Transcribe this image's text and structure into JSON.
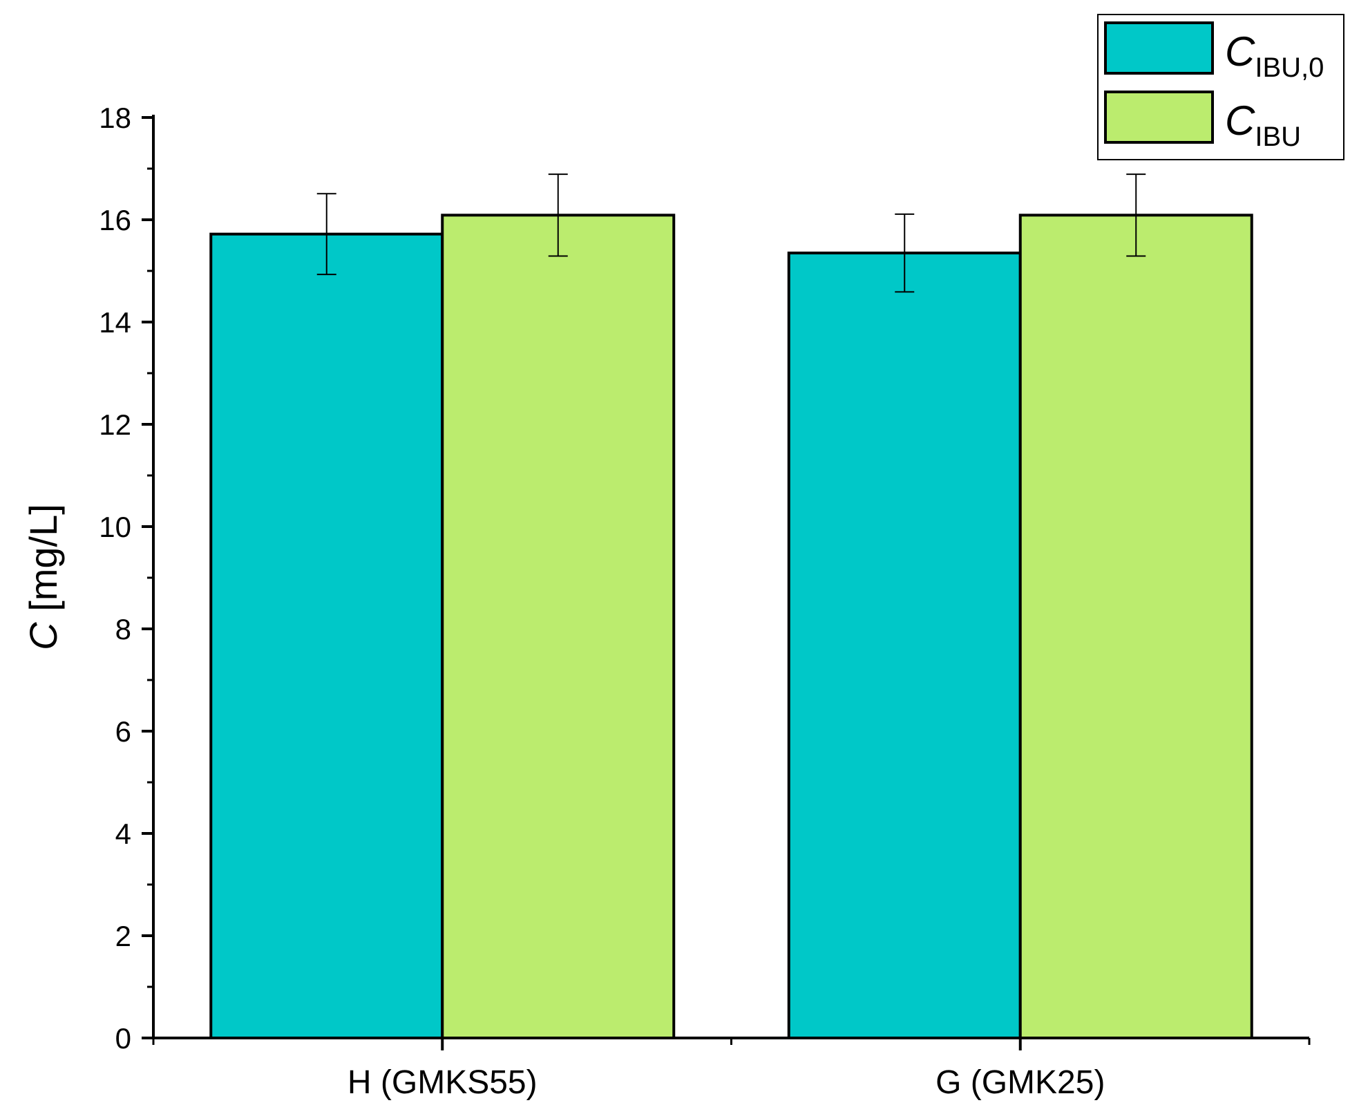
{
  "chart_data": {
    "type": "bar",
    "categories": [
      "H (GMKS55)",
      "G (GMK25)"
    ],
    "series": [
      {
        "name": "C_IBU,0",
        "legend_main": "C",
        "legend_sub": "IBU,0",
        "color": "#00C8C8",
        "values": [
          15.72,
          15.35
        ],
        "errors": [
          0.79,
          0.76
        ]
      },
      {
        "name": "C_IBU",
        "legend_main": "C",
        "legend_sub": "IBU",
        "color": "#BBEC6E",
        "values": [
          16.09,
          16.09
        ],
        "errors": [
          0.8,
          0.8
        ]
      }
    ],
    "ylabel_main": "C",
    "ylabel_unit": " [mg/L]",
    "ylim": [
      0,
      18
    ],
    "yticks": [
      "0",
      "2",
      "4",
      "6",
      "8",
      "10",
      "12",
      "14",
      "16",
      "18"
    ],
    "grid": false,
    "legend_position": "top-right"
  }
}
